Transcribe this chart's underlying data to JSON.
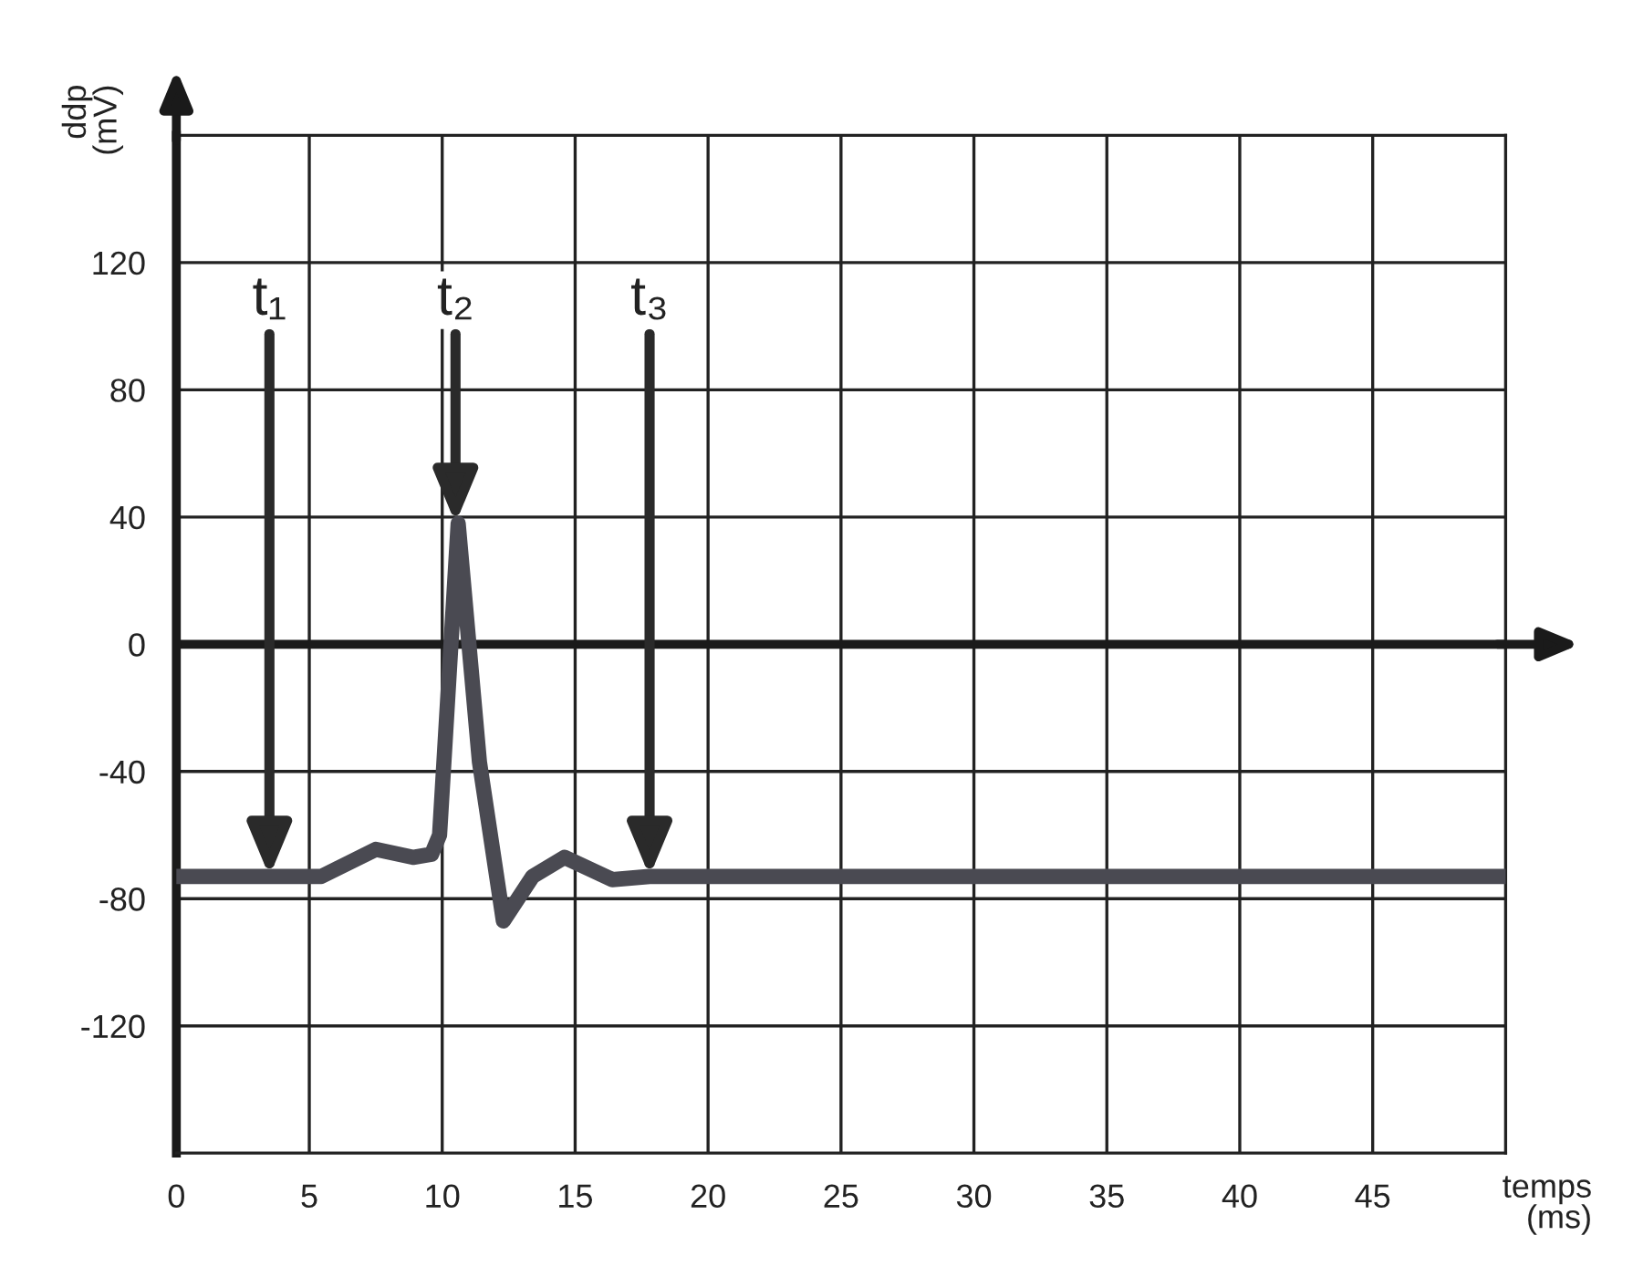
{
  "chart_data": {
    "type": "line",
    "xlabel": "temps\n(ms)",
    "ylabel": "ddp\n(mV)",
    "x": [
      0,
      3.5,
      5.45,
      7.5,
      8.9,
      9.6,
      9.9,
      10.6,
      11.4,
      12.3,
      13.4,
      14.6,
      16.4,
      17.8,
      50
    ],
    "series": [
      {
        "color": "#4a4a52",
        "values": [
          -73,
          -73,
          -73,
          -64.5,
          -67,
          -66,
          -60,
          38,
          -37,
          -87,
          -73,
          -67,
          -74,
          -73,
          -73
        ]
      }
    ],
    "xlim": [
      0,
      50
    ],
    "xticks": [
      0,
      5,
      10,
      15,
      20,
      25,
      30,
      35,
      40,
      45
    ],
    "ylim": [
      -160,
      160
    ],
    "yticks": [
      -120,
      -80,
      -40,
      0,
      40,
      80,
      120
    ],
    "grid": true,
    "marker": "none",
    "line_style": "solid",
    "ref_lines": [
      {
        "axis": "y",
        "value": 0,
        "color": "#1a1a1a"
      }
    ],
    "annotations": [
      {
        "text": "t₁",
        "x": 3.5,
        "y": -73
      },
      {
        "text": "t₂",
        "x": 10.5,
        "y": 38
      },
      {
        "text": "t₃",
        "x": 17.8,
        "y": -73
      }
    ]
  }
}
